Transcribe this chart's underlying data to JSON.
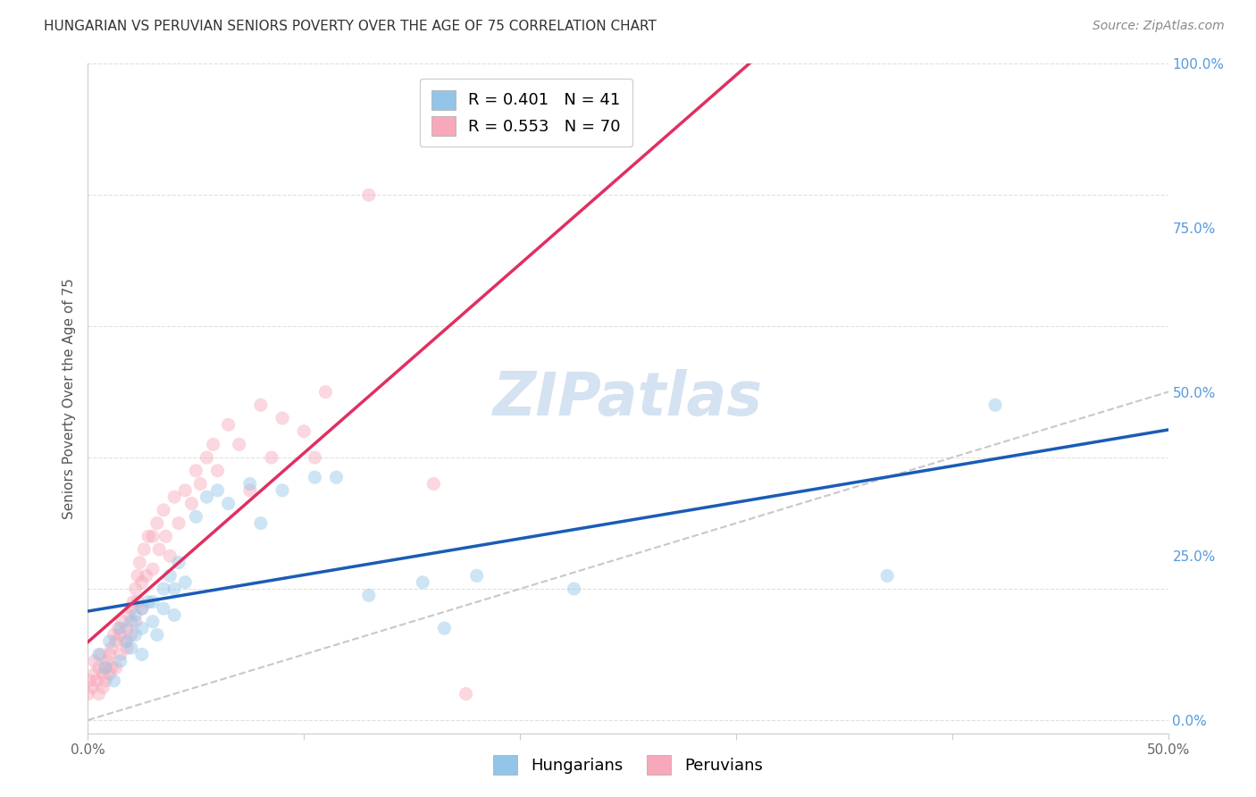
{
  "title": "HUNGARIAN VS PERUVIAN SENIORS POVERTY OVER THE AGE OF 75 CORRELATION CHART",
  "source": "Source: ZipAtlas.com",
  "ylabel": "Seniors Poverty Over the Age of 75",
  "background_color": "#ffffff",
  "xlim": [
    0.0,
    0.5
  ],
  "ylim": [
    -0.02,
    1.0
  ],
  "xtick_positions": [
    0.0,
    0.1,
    0.2,
    0.3,
    0.4,
    0.5
  ],
  "xtick_labels": [
    "0.0%",
    "",
    "",
    "",
    "",
    "50.0%"
  ],
  "ytick_positions": [
    0.0,
    0.25,
    0.5,
    0.75,
    1.0
  ],
  "ytick_labels_right": [
    "0.0%",
    "25.0%",
    "50.0%",
    "75.0%",
    "100.0%"
  ],
  "hungarian_R": 0.401,
  "hungarian_N": 41,
  "peruvian_R": 0.553,
  "peruvian_N": 70,
  "hungarian_color": "#92c5e8",
  "peruvian_color": "#f7a8ba",
  "hungarian_line_color": "#1a5cb5",
  "peruvian_line_color": "#e03060",
  "diagonal_color": "#c8c8c8",
  "watermark": "ZIPatlas",
  "hungarian_x": [
    0.005,
    0.008,
    0.01,
    0.012,
    0.015,
    0.015,
    0.018,
    0.02,
    0.02,
    0.022,
    0.022,
    0.025,
    0.025,
    0.025,
    0.028,
    0.03,
    0.03,
    0.032,
    0.035,
    0.035,
    0.038,
    0.04,
    0.04,
    0.042,
    0.045,
    0.05,
    0.055,
    0.06,
    0.065,
    0.075,
    0.08,
    0.09,
    0.105,
    0.115,
    0.13,
    0.155,
    0.165,
    0.18,
    0.225,
    0.37,
    0.42
  ],
  "hungarian_y": [
    0.1,
    0.08,
    0.12,
    0.06,
    0.14,
    0.09,
    0.12,
    0.15,
    0.11,
    0.16,
    0.13,
    0.17,
    0.14,
    0.1,
    0.18,
    0.18,
    0.15,
    0.13,
    0.2,
    0.17,
    0.22,
    0.2,
    0.16,
    0.24,
    0.21,
    0.31,
    0.34,
    0.35,
    0.33,
    0.36,
    0.3,
    0.35,
    0.37,
    0.37,
    0.19,
    0.21,
    0.14,
    0.22,
    0.2,
    0.22,
    0.48
  ],
  "peruvian_x": [
    0.0,
    0.001,
    0.002,
    0.003,
    0.003,
    0.004,
    0.005,
    0.005,
    0.006,
    0.007,
    0.007,
    0.008,
    0.008,
    0.009,
    0.01,
    0.01,
    0.011,
    0.011,
    0.012,
    0.013,
    0.013,
    0.014,
    0.015,
    0.015,
    0.016,
    0.017,
    0.018,
    0.018,
    0.019,
    0.02,
    0.02,
    0.021,
    0.022,
    0.022,
    0.023,
    0.023,
    0.024,
    0.025,
    0.025,
    0.026,
    0.027,
    0.028,
    0.03,
    0.03,
    0.032,
    0.033,
    0.035,
    0.036,
    0.038,
    0.04,
    0.042,
    0.045,
    0.048,
    0.05,
    0.052,
    0.055,
    0.058,
    0.06,
    0.065,
    0.07,
    0.075,
    0.08,
    0.085,
    0.09,
    0.1,
    0.105,
    0.11,
    0.13,
    0.16,
    0.175
  ],
  "peruvian_y": [
    0.04,
    0.06,
    0.05,
    0.07,
    0.09,
    0.06,
    0.08,
    0.04,
    0.1,
    0.07,
    0.05,
    0.08,
    0.06,
    0.09,
    0.1,
    0.07,
    0.11,
    0.08,
    0.13,
    0.12,
    0.08,
    0.14,
    0.13,
    0.1,
    0.15,
    0.12,
    0.14,
    0.11,
    0.16,
    0.17,
    0.13,
    0.18,
    0.2,
    0.15,
    0.22,
    0.18,
    0.24,
    0.21,
    0.17,
    0.26,
    0.22,
    0.28,
    0.28,
    0.23,
    0.3,
    0.26,
    0.32,
    0.28,
    0.25,
    0.34,
    0.3,
    0.35,
    0.33,
    0.38,
    0.36,
    0.4,
    0.42,
    0.38,
    0.45,
    0.42,
    0.35,
    0.48,
    0.4,
    0.46,
    0.44,
    0.4,
    0.5,
    0.8,
    0.36,
    0.04
  ],
  "hungarian_reg": [
    0.093,
    0.88
  ],
  "peruvian_reg": [
    0.02,
    2.85
  ],
  "title_fontsize": 11,
  "axis_label_fontsize": 11,
  "tick_fontsize": 11,
  "legend_fontsize": 13,
  "source_fontsize": 10,
  "watermark_fontsize": 48,
  "marker_size": 120,
  "marker_alpha": 0.45,
  "grid_color": "#e0e0e0",
  "grid_style": "--"
}
